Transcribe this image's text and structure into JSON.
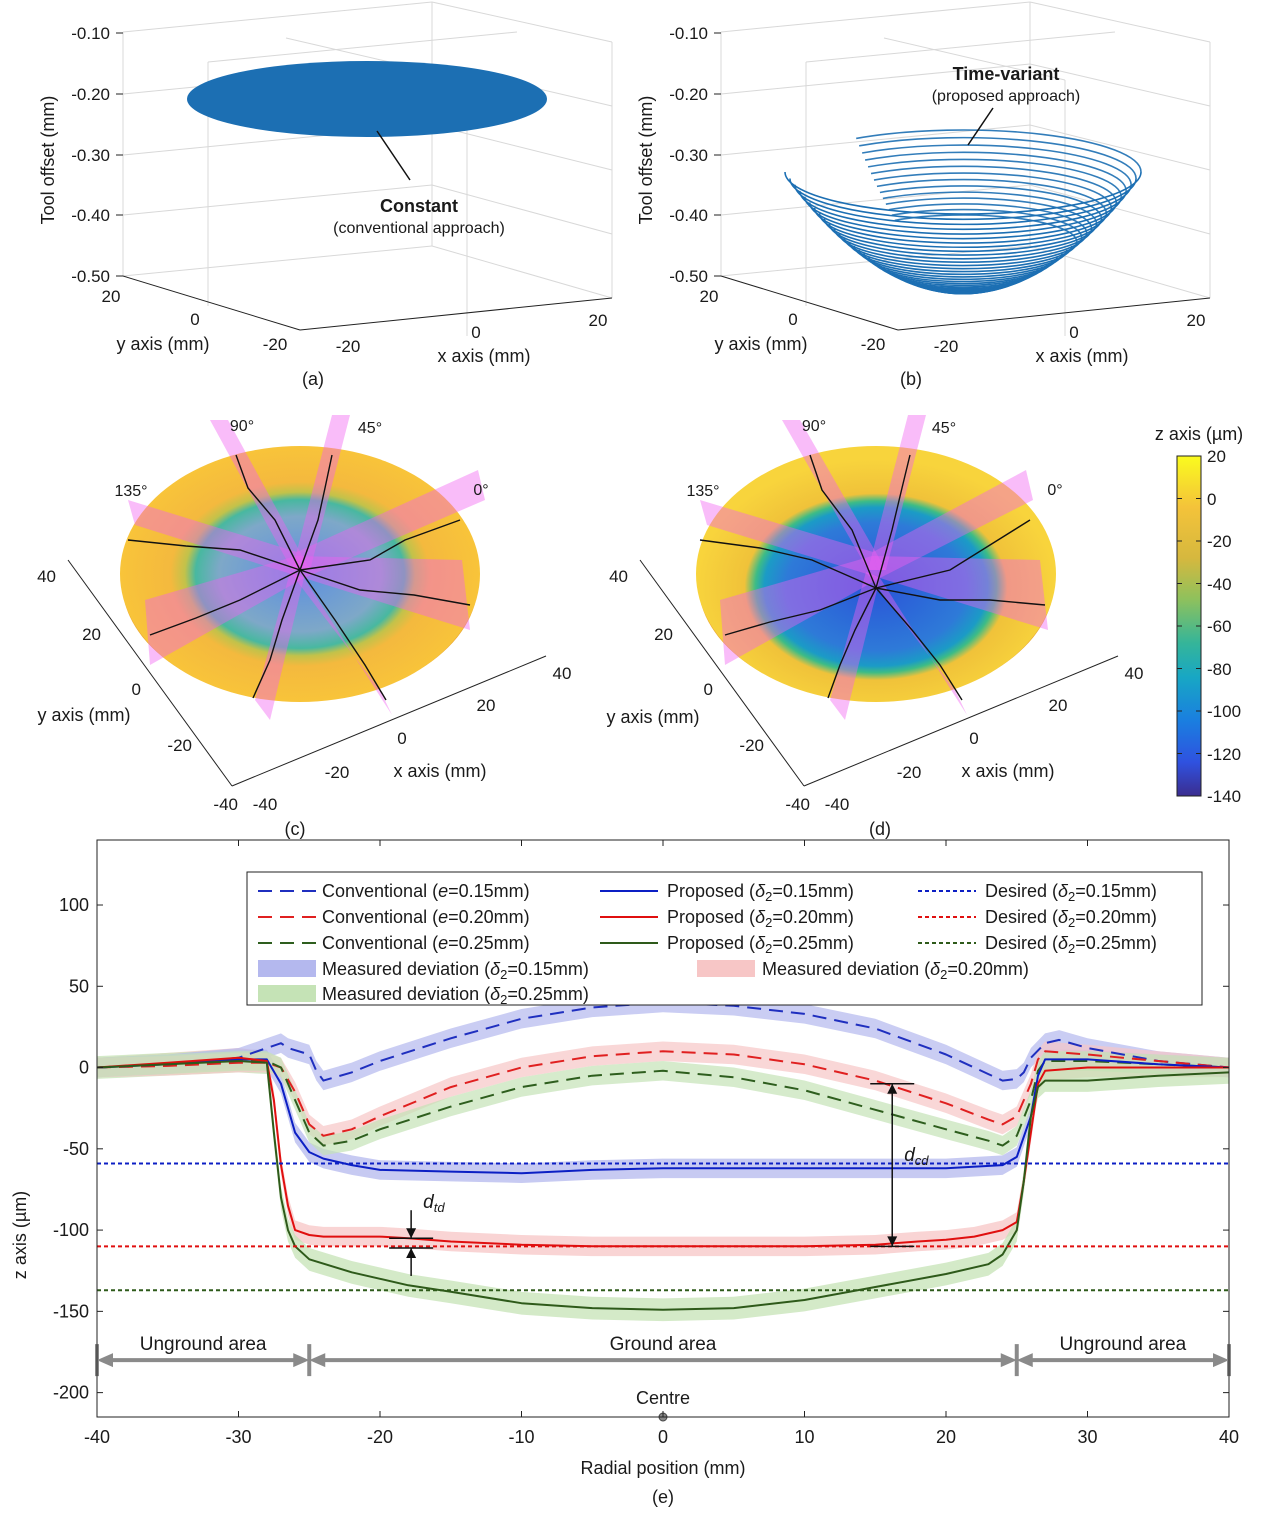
{
  "panels": {
    "a": {
      "label": "(a)",
      "ylabel": "Tool offset (mm)",
      "xlabel": "x axis (mm)",
      "ylabel2": "y axis (mm)",
      "zticks": [
        "-0.10",
        "-0.20",
        "-0.30",
        "-0.40",
        "-0.50"
      ],
      "yticks": [
        "20",
        "0",
        "-20"
      ],
      "xticks": [
        "-20",
        "0",
        "20"
      ],
      "annotation_bold": "Constant",
      "annotation": "(conventional approach)",
      "surface_offset_mm": -0.22
    },
    "b": {
      "label": "(b)",
      "ylabel": "Tool offset (mm)",
      "xlabel": "x axis (mm)",
      "ylabel2": "y axis (mm)",
      "zticks": [
        "-0.10",
        "-0.20",
        "-0.30",
        "-0.40",
        "-0.50"
      ],
      "yticks": [
        "20",
        "0",
        "-20"
      ],
      "xticks": [
        "-20",
        "0",
        "20"
      ],
      "annotation_bold": "Time-variant",
      "annotation": "(proposed approach)",
      "edge_offset_mm": -0.32,
      "centre_offset_mm": -0.5
    },
    "c": {
      "label": "(c)",
      "xlabel": "x axis (mm)",
      "ylabel": "y axis (mm)",
      "xticks": [
        "-40",
        "-20",
        "0",
        "20",
        "40"
      ],
      "yticks": [
        "40",
        "20",
        "0",
        "-20",
        "-40"
      ],
      "angles": [
        "90°",
        "45°",
        "135°",
        "0°"
      ]
    },
    "d": {
      "label": "(d)",
      "xlabel": "x axis (mm)",
      "ylabel": "y axis (mm)",
      "xticks": [
        "-40",
        "-20",
        "0",
        "20",
        "40"
      ],
      "yticks": [
        "40",
        "20",
        "0",
        "-20",
        "-40"
      ],
      "angles": [
        "90°",
        "45°",
        "135°",
        "0°"
      ]
    },
    "colorbar": {
      "title": "z axis (µm)",
      "ticks": [
        "20",
        "0",
        "-20",
        "-40",
        "-60",
        "-80",
        "-100",
        "-120",
        "-140"
      ],
      "range": [
        -140,
        20
      ]
    }
  },
  "chart_data": {
    "type": "line",
    "panel_label": "(e)",
    "xlabel": "Radial position (mm)",
    "ylabel": "z axis (µm)",
    "xlim": [
      -40,
      40
    ],
    "ylim": [
      -215,
      140
    ],
    "xticks": [
      -40,
      -30,
      -20,
      -10,
      0,
      10,
      20,
      30,
      40
    ],
    "yticks": [
      -200,
      -150,
      -100,
      -50,
      0,
      50,
      100
    ],
    "series": [
      {
        "key": "c15",
        "name": "Conventional (e=0.15mm)",
        "style": "dashed",
        "color": "#1f2fbf",
        "points": [
          [
            -40,
            0
          ],
          [
            -35,
            2
          ],
          [
            -30,
            6
          ],
          [
            -28,
            12
          ],
          [
            -27,
            15
          ],
          [
            -26.5,
            12
          ],
          [
            -25,
            8
          ],
          [
            -24.5,
            -2
          ],
          [
            -24,
            -8
          ],
          [
            -22,
            -3
          ],
          [
            -20,
            4
          ],
          [
            -15,
            18
          ],
          [
            -10,
            30
          ],
          [
            -5,
            37
          ],
          [
            0,
            40
          ],
          [
            5,
            38
          ],
          [
            10,
            33
          ],
          [
            15,
            24
          ],
          [
            20,
            8
          ],
          [
            23,
            -4
          ],
          [
            24,
            -8
          ],
          [
            25,
            -7
          ],
          [
            25.5,
            -3
          ],
          [
            26,
            6
          ],
          [
            27,
            15
          ],
          [
            28,
            17
          ],
          [
            30,
            12
          ],
          [
            35,
            4
          ],
          [
            40,
            0
          ]
        ]
      },
      {
        "key": "c20",
        "name": "Conventional (e=0.20mm)",
        "style": "dashed",
        "color": "#e02020",
        "points": [
          [
            -40,
            0
          ],
          [
            -35,
            1
          ],
          [
            -30,
            3
          ],
          [
            -28,
            3
          ],
          [
            -27,
            0
          ],
          [
            -26,
            -15
          ],
          [
            -25,
            -35
          ],
          [
            -24,
            -42
          ],
          [
            -22,
            -38
          ],
          [
            -20,
            -30
          ],
          [
            -15,
            -12
          ],
          [
            -10,
            0
          ],
          [
            -5,
            7
          ],
          [
            0,
            10
          ],
          [
            5,
            8
          ],
          [
            10,
            2
          ],
          [
            15,
            -8
          ],
          [
            20,
            -22
          ],
          [
            23,
            -32
          ],
          [
            24,
            -35
          ],
          [
            25,
            -30
          ],
          [
            26,
            -10
          ],
          [
            26.5,
            5
          ],
          [
            27,
            10
          ],
          [
            30,
            8
          ],
          [
            35,
            4
          ],
          [
            40,
            0
          ]
        ]
      },
      {
        "key": "c25",
        "name": "Conventional (e=0.25mm)",
        "style": "dashed",
        "color": "#2e5e1e",
        "points": [
          [
            -40,
            0
          ],
          [
            -35,
            2
          ],
          [
            -30,
            4
          ],
          [
            -28,
            4
          ],
          [
            -27,
            0
          ],
          [
            -26,
            -20
          ],
          [
            -25,
            -40
          ],
          [
            -24,
            -48
          ],
          [
            -22,
            -45
          ],
          [
            -20,
            -38
          ],
          [
            -15,
            -24
          ],
          [
            -10,
            -12
          ],
          [
            -5,
            -5
          ],
          [
            0,
            -2
          ],
          [
            5,
            -6
          ],
          [
            10,
            -14
          ],
          [
            15,
            -26
          ],
          [
            20,
            -38
          ],
          [
            23,
            -45
          ],
          [
            24,
            -48
          ],
          [
            25,
            -42
          ],
          [
            26,
            -20
          ],
          [
            26.5,
            -2
          ],
          [
            27,
            4
          ],
          [
            30,
            4
          ],
          [
            35,
            2
          ],
          [
            40,
            0
          ]
        ]
      },
      {
        "key": "p15",
        "name": "Proposed (δ2=0.15mm)",
        "style": "solid",
        "color": "#0c1fc4",
        "points": [
          [
            -40,
            0
          ],
          [
            -35,
            2
          ],
          [
            -30,
            5
          ],
          [
            -28,
            5
          ],
          [
            -27,
            -10
          ],
          [
            -26,
            -40
          ],
          [
            -25,
            -52
          ],
          [
            -24,
            -56
          ],
          [
            -22,
            -60
          ],
          [
            -20,
            -63
          ],
          [
            -15,
            -64
          ],
          [
            -10,
            -65
          ],
          [
            -5,
            -63
          ],
          [
            0,
            -62
          ],
          [
            5,
            -62
          ],
          [
            10,
            -62
          ],
          [
            15,
            -62
          ],
          [
            20,
            -62
          ],
          [
            24,
            -60
          ],
          [
            25,
            -55
          ],
          [
            26,
            -30
          ],
          [
            26.5,
            -5
          ],
          [
            27,
            5
          ],
          [
            30,
            5
          ],
          [
            35,
            2
          ],
          [
            40,
            0
          ]
        ]
      },
      {
        "key": "p20",
        "name": "Proposed (δ2=0.20mm)",
        "style": "solid",
        "color": "#e00f0f",
        "points": [
          [
            -40,
            0
          ],
          [
            -35,
            3
          ],
          [
            -30,
            6
          ],
          [
            -28,
            4
          ],
          [
            -27.5,
            -20
          ],
          [
            -27,
            -60
          ],
          [
            -26.5,
            -85
          ],
          [
            -26,
            -100
          ],
          [
            -25,
            -103
          ],
          [
            -24,
            -104
          ],
          [
            -20,
            -104
          ],
          [
            -18,
            -105
          ],
          [
            -15,
            -107
          ],
          [
            -10,
            -109
          ],
          [
            -5,
            -110
          ],
          [
            0,
            -110
          ],
          [
            5,
            -110
          ],
          [
            10,
            -110
          ],
          [
            15,
            -109
          ],
          [
            18,
            -107
          ],
          [
            20,
            -106
          ],
          [
            22,
            -104
          ],
          [
            24,
            -100
          ],
          [
            25,
            -95
          ],
          [
            25.5,
            -70
          ],
          [
            26,
            -40
          ],
          [
            26.5,
            -10
          ],
          [
            27,
            -2
          ],
          [
            30,
            0
          ],
          [
            35,
            0
          ],
          [
            40,
            0
          ]
        ]
      },
      {
        "key": "p25",
        "name": "Proposed (δ2=0.25mm)",
        "style": "solid",
        "color": "#2e5a1a",
        "points": [
          [
            -40,
            0
          ],
          [
            -35,
            2
          ],
          [
            -30,
            4
          ],
          [
            -28,
            3
          ],
          [
            -27.5,
            -40
          ],
          [
            -27,
            -80
          ],
          [
            -26.5,
            -100
          ],
          [
            -26,
            -110
          ],
          [
            -25,
            -118
          ],
          [
            -22,
            -126
          ],
          [
            -20,
            -130
          ],
          [
            -18,
            -134
          ],
          [
            -15,
            -138
          ],
          [
            -10,
            -145
          ],
          [
            -5,
            -148
          ],
          [
            0,
            -149
          ],
          [
            5,
            -148
          ],
          [
            10,
            -143
          ],
          [
            15,
            -135
          ],
          [
            20,
            -127
          ],
          [
            23,
            -121
          ],
          [
            24,
            -115
          ],
          [
            25,
            -100
          ],
          [
            25.5,
            -70
          ],
          [
            26,
            -30
          ],
          [
            26.5,
            -12
          ],
          [
            27,
            -8
          ],
          [
            30,
            -8
          ],
          [
            35,
            -5
          ],
          [
            40,
            -3
          ]
        ]
      },
      {
        "key": "d15",
        "name": "Desired (δ2=0.15mm)",
        "style": "dotted",
        "color": "#0c1fc4",
        "constant": -59
      },
      {
        "key": "d20",
        "name": "Desired (δ2=0.20mm)",
        "style": "dotted",
        "color": "#e00f0f",
        "constant": -110
      },
      {
        "key": "d25",
        "name": "Desired (δ2=0.25mm)",
        "style": "dotted",
        "color": "#2e5a1a",
        "constant": -137
      }
    ],
    "bands": [
      {
        "key": "m15",
        "name": "Measured deviation (δ2=0.15mm)",
        "of": "p15",
        "color": "#b4b8ee",
        "halfwidth": 6
      },
      {
        "key": "m20",
        "name": "Measured deviation (δ2=0.20mm)",
        "of": "p20",
        "color": "#f7c6c6",
        "halfwidth": 6
      },
      {
        "key": "m25",
        "name": "Measured deviation (δ2=0.25mm)",
        "of": "p25",
        "color": "#c5e3b6",
        "halfwidth": 7
      }
    ],
    "regions": [
      {
        "label": "Unground area",
        "from": -40,
        "to": -25
      },
      {
        "label": "Ground area",
        "from": -25,
        "to": 25
      },
      {
        "label": "Unground area",
        "from": 25,
        "to": 40
      }
    ],
    "region_arrow_y": -180,
    "centre_label": "Centre",
    "annotations": {
      "dtd_label": "dtd",
      "dtd_x": -17.8,
      "dtd_range": [
        -105,
        -111
      ],
      "dcd_label": "dcd",
      "dcd_x": 16.2,
      "dcd_range": [
        -10,
        -110
      ]
    }
  }
}
